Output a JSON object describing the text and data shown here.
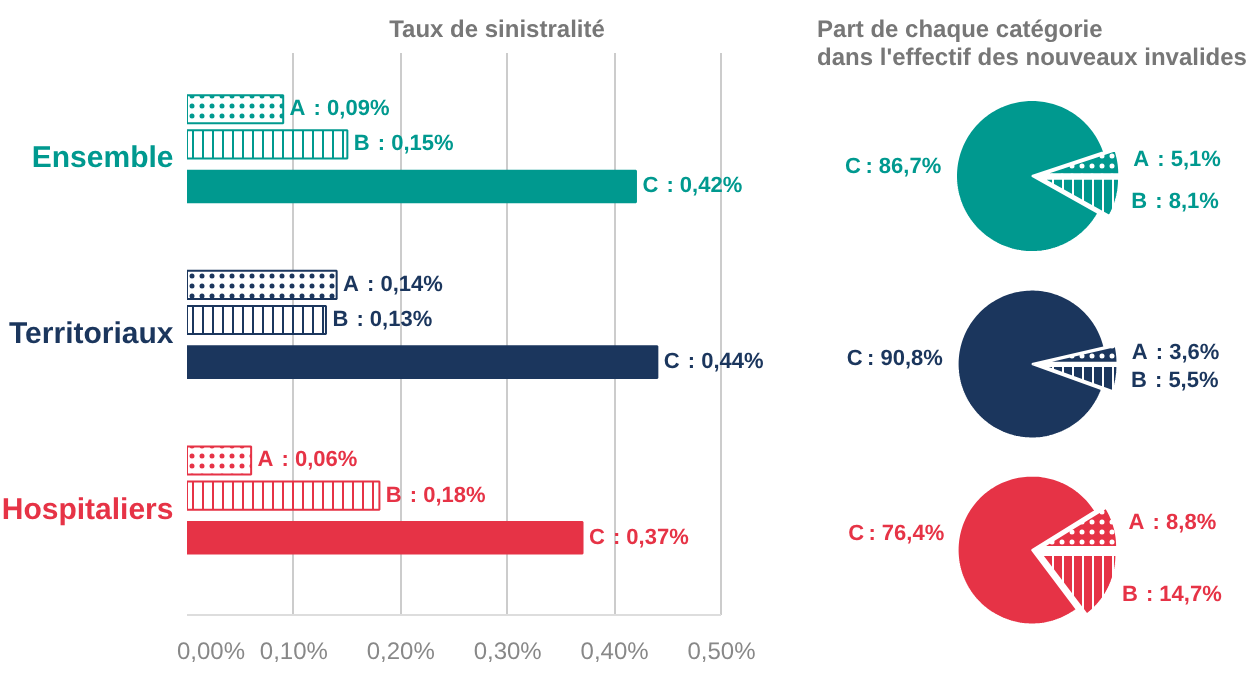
{
  "chart_data": [
    {
      "type": "bar",
      "orientation": "horizontal",
      "title": "Taux de sinistralité",
      "categories": [
        "Ensemble",
        "Territoriaux",
        "Hospitaliers"
      ],
      "series": [
        {
          "name": "A",
          "colors": [
            "#00998f",
            "#1b365d",
            "#e63346"
          ],
          "values": [
            0.09,
            0.14,
            0.06
          ],
          "value_labels": [
            ": 0,09%",
            ": 0,14%",
            ": 0,06%"
          ]
        },
        {
          "name": "B",
          "colors": [
            "#00998f",
            "#1b365d",
            "#e63346"
          ],
          "values": [
            0.15,
            0.13,
            0.18
          ],
          "value_labels": [
            ": 0,15%",
            ": 0,13%",
            ": 0,18%"
          ]
        },
        {
          "name": "C",
          "colors": [
            "#00998f",
            "#1b365d",
            "#e63346"
          ],
          "values": [
            0.42,
            0.44,
            0.37
          ],
          "value_labels": [
            ": 0,42%",
            ": 0,44%",
            ": 0,37%"
          ]
        }
      ],
      "xlim": [
        0,
        0.5
      ],
      "xticks": [
        {
          "value": 0,
          "label": "0,00%"
        },
        {
          "value": 0.1,
          "label": "0,10%"
        },
        {
          "value": 0.2,
          "label": "0,20%"
        },
        {
          "value": 0.3,
          "label": "0,30%"
        },
        {
          "value": 0.4,
          "label": "0,40%"
        },
        {
          "value": 0.5,
          "label": "0,50%"
        }
      ],
      "grid": "x"
    },
    {
      "type": "pie",
      "title": "Part de chaque catégorie\ndans l'effectif des nouveaux invalides",
      "categories": [
        "A",
        "B",
        "C"
      ],
      "values": [
        5.1,
        8.1,
        86.7
      ],
      "colors": [
        "#00998f",
        "#00998f",
        "#00998f"
      ],
      "value_labels": [
        ": 5,1%",
        ": 8,1%",
        ": 86,7%"
      ]
    },
    {
      "type": "pie",
      "categories": [
        "A",
        "B",
        "C"
      ],
      "values": [
        3.6,
        5.5,
        90.8
      ],
      "colors": [
        "#1b365d",
        "#1b365d",
        "#1b365d"
      ],
      "value_labels": [
        ": 3,6%",
        ": 5,5%",
        ": 90,8%"
      ]
    },
    {
      "type": "pie",
      "categories": [
        "A",
        "B",
        "C"
      ],
      "values": [
        8.8,
        14.7,
        76.4
      ],
      "colors": [
        "#e63346",
        "#e63346",
        "#e63346"
      ],
      "value_labels": [
        ": 8,8%",
        ": 14,7%",
        ": 76,4%"
      ]
    }
  ]
}
